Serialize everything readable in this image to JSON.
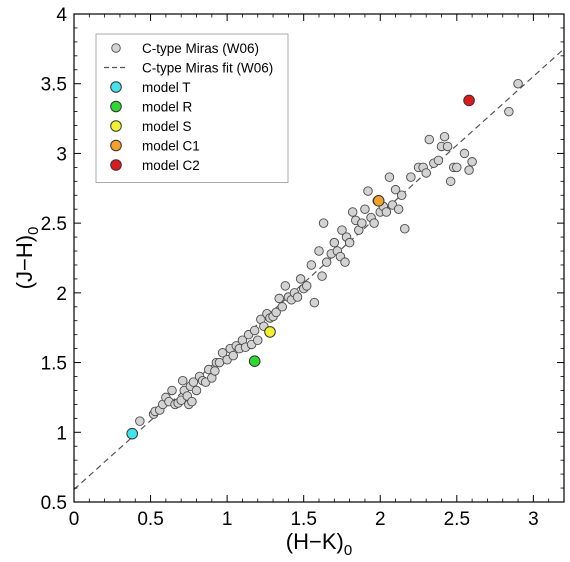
{
  "chart_data": {
    "type": "scatter",
    "xlabel": "(H−K)",
    "xlabel_sub": "0",
    "ylabel": "(J−H)",
    "ylabel_sub": "0",
    "xlim": [
      0,
      3.2
    ],
    "ylim": [
      0.5,
      4
    ],
    "xticks": [
      0,
      0.5,
      1,
      1.5,
      2,
      2.5,
      3
    ],
    "xtick_labels": [
      "0",
      "0.5",
      "1",
      "1.5",
      "2",
      "2.5",
      "3"
    ],
    "yticks": [
      0.5,
      1,
      1.5,
      2,
      2.5,
      3,
      3.5,
      4
    ],
    "ytick_labels": [
      "0.5",
      "1",
      "1.5",
      "2",
      "2.5",
      "3",
      "3.5",
      "4"
    ],
    "grid": false,
    "legend_position": "top-left",
    "series": [
      {
        "name": "C-type Miras (W06)",
        "kind": "scatter",
        "color": "#d3d3d3",
        "points": [
          [
            0.43,
            1.08
          ],
          [
            0.52,
            1.13
          ],
          [
            0.53,
            1.15
          ],
          [
            0.56,
            1.16
          ],
          [
            0.58,
            1.2
          ],
          [
            0.6,
            1.25
          ],
          [
            0.62,
            1.22
          ],
          [
            0.64,
            1.3
          ],
          [
            0.66,
            1.2
          ],
          [
            0.68,
            1.21
          ],
          [
            0.7,
            1.23
          ],
          [
            0.71,
            1.37
          ],
          [
            0.72,
            1.3
          ],
          [
            0.74,
            1.26
          ],
          [
            0.75,
            1.2
          ],
          [
            0.76,
            1.33
          ],
          [
            0.77,
            1.22
          ],
          [
            0.78,
            1.36
          ],
          [
            0.8,
            1.3
          ],
          [
            0.82,
            1.4
          ],
          [
            0.84,
            1.37
          ],
          [
            0.86,
            1.36
          ],
          [
            0.88,
            1.45
          ],
          [
            0.9,
            1.39
          ],
          [
            0.92,
            1.44
          ],
          [
            0.93,
            1.5
          ],
          [
            0.95,
            1.5
          ],
          [
            0.97,
            1.57
          ],
          [
            1.0,
            1.52
          ],
          [
            1.02,
            1.6
          ],
          [
            1.04,
            1.55
          ],
          [
            1.06,
            1.62
          ],
          [
            1.08,
            1.6
          ],
          [
            1.1,
            1.66
          ],
          [
            1.12,
            1.61
          ],
          [
            1.14,
            1.7
          ],
          [
            1.16,
            1.63
          ],
          [
            1.18,
            1.73
          ],
          [
            1.2,
            1.66
          ],
          [
            1.22,
            1.81
          ],
          [
            1.24,
            1.76
          ],
          [
            1.26,
            1.85
          ],
          [
            1.28,
            1.82
          ],
          [
            1.3,
            1.83
          ],
          [
            1.32,
            1.86
          ],
          [
            1.34,
            1.96
          ],
          [
            1.36,
            1.9
          ],
          [
            1.38,
            2.05
          ],
          [
            1.4,
            1.97
          ],
          [
            1.42,
            1.95
          ],
          [
            1.44,
            2.0
          ],
          [
            1.46,
            1.97
          ],
          [
            1.48,
            2.1
          ],
          [
            1.5,
            2.03
          ],
          [
            1.52,
            2.05
          ],
          [
            1.55,
            2.2
          ],
          [
            1.57,
            1.93
          ],
          [
            1.6,
            2.3
          ],
          [
            1.62,
            2.12
          ],
          [
            1.63,
            2.5
          ],
          [
            1.65,
            2.22
          ],
          [
            1.68,
            2.28
          ],
          [
            1.7,
            2.36
          ],
          [
            1.72,
            2.3
          ],
          [
            1.74,
            2.26
          ],
          [
            1.75,
            2.45
          ],
          [
            1.77,
            2.22
          ],
          [
            1.78,
            2.4
          ],
          [
            1.8,
            2.36
          ],
          [
            1.82,
            2.58
          ],
          [
            1.84,
            2.52
          ],
          [
            1.86,
            2.45
          ],
          [
            1.88,
            2.5
          ],
          [
            1.9,
            2.6
          ],
          [
            1.92,
            2.73
          ],
          [
            1.94,
            2.54
          ],
          [
            1.96,
            2.5
          ],
          [
            1.98,
            2.66
          ],
          [
            2.0,
            2.58
          ],
          [
            2.02,
            2.62
          ],
          [
            2.04,
            2.58
          ],
          [
            2.06,
            2.83
          ],
          [
            2.08,
            2.63
          ],
          [
            2.1,
            2.74
          ],
          [
            2.12,
            2.6
          ],
          [
            2.14,
            2.7
          ],
          [
            2.16,
            2.46
          ],
          [
            2.2,
            2.83
          ],
          [
            2.25,
            2.9
          ],
          [
            2.28,
            2.9
          ],
          [
            2.3,
            2.86
          ],
          [
            2.32,
            3.1
          ],
          [
            2.35,
            2.93
          ],
          [
            2.38,
            2.95
          ],
          [
            2.4,
            3.05
          ],
          [
            2.42,
            3.12
          ],
          [
            2.44,
            3.05
          ],
          [
            2.46,
            2.8
          ],
          [
            2.48,
            2.9
          ],
          [
            2.5,
            2.9
          ],
          [
            2.55,
            3.0
          ],
          [
            2.58,
            2.88
          ],
          [
            2.6,
            2.94
          ],
          [
            2.84,
            3.3
          ],
          [
            2.9,
            3.5
          ]
        ]
      },
      {
        "name": "C-type Miras fit (W06)",
        "kind": "line",
        "style": "dashed",
        "color": "#555555",
        "x": [
          0.0,
          3.2
        ],
        "y": [
          0.59,
          3.75
        ]
      },
      {
        "name": "model T",
        "kind": "marker",
        "color": "#3fe4ec",
        "x": 0.38,
        "y": 0.99
      },
      {
        "name": "model R",
        "kind": "marker",
        "color": "#2fd82f",
        "x": 1.18,
        "y": 1.51
      },
      {
        "name": "model S",
        "kind": "marker",
        "color": "#f2f22a",
        "x": 1.28,
        "y": 1.72
      },
      {
        "name": "model C1",
        "kind": "marker",
        "color": "#f3a12a",
        "x": 1.99,
        "y": 2.66
      },
      {
        "name": "model C2",
        "kind": "marker",
        "color": "#e0181b",
        "x": 2.58,
        "y": 3.38
      }
    ]
  }
}
